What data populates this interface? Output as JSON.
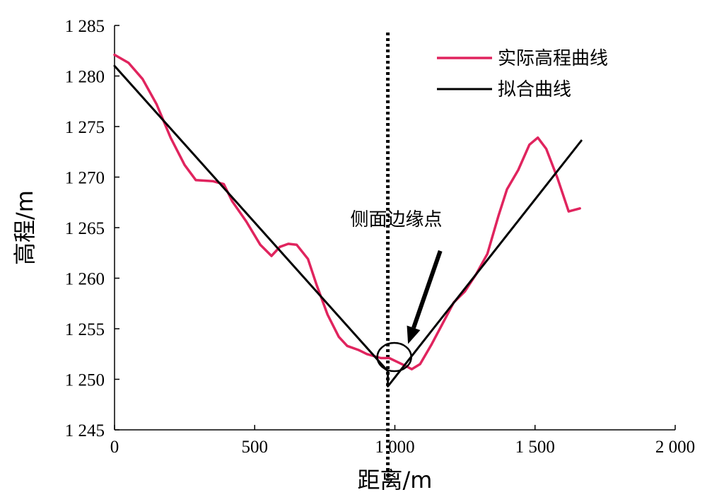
{
  "chart_data": {
    "type": "line",
    "title": "",
    "xlabel": "距离/m",
    "ylabel": "高程/m",
    "xlim": [
      0,
      2000
    ],
    "ylim": [
      1245,
      1285
    ],
    "x_ticks": [
      0,
      500,
      1000,
      1500,
      2000
    ],
    "x_tick_labels": [
      "0",
      "500",
      "1 000",
      "1 500",
      "2 000"
    ],
    "y_ticks": [
      1245,
      1250,
      1255,
      1260,
      1265,
      1270,
      1275,
      1280,
      1285
    ],
    "y_tick_labels": [
      "1 245",
      "1 250",
      "1 255",
      "1 260",
      "1 265",
      "1 270",
      "1 275",
      "1 280",
      "1 285"
    ],
    "grid": false,
    "legend_position": "top-right",
    "series": [
      {
        "name": "实际高程曲线",
        "color": "#e0245e",
        "x": [
          0,
          50,
          100,
          150,
          200,
          250,
          290,
          350,
          390,
          420,
          470,
          520,
          560,
          590,
          620,
          650,
          690,
          720,
          760,
          800,
          830,
          870,
          900,
          950,
          980,
          1010,
          1040,
          1060,
          1090,
          1130,
          1170,
          1210,
          1250,
          1290,
          1330,
          1370,
          1400,
          1440,
          1480,
          1510,
          1540,
          1580,
          1620,
          1660
        ],
        "y": [
          1282.1,
          1281.3,
          1279.7,
          1277.2,
          1273.9,
          1271.2,
          1269.7,
          1269.6,
          1269.3,
          1267.6,
          1265.6,
          1263.3,
          1262.2,
          1263.1,
          1263.4,
          1263.3,
          1261.9,
          1259.4,
          1256.4,
          1254.2,
          1253.3,
          1252.9,
          1252.5,
          1252.1,
          1252.1,
          1251.7,
          1251.3,
          1251.0,
          1251.5,
          1253.4,
          1255.5,
          1257.6,
          1258.7,
          1260.4,
          1262.4,
          1266.2,
          1268.8,
          1270.7,
          1273.2,
          1273.9,
          1272.8,
          1269.9,
          1266.6,
          1266.9
        ],
        "width": 3.5
      },
      {
        "name": "拟合曲线",
        "color": "#000000",
        "x": [
          0,
          975,
          975,
          1665
        ],
        "y": [
          1281.0,
          1250.8,
          1249.3,
          1273.6
        ],
        "width": 3
      }
    ],
    "vertical_line": {
      "x": 975,
      "style": "dotted"
    },
    "annotations": [
      {
        "text": "侧面边缘点",
        "text_x": 1005,
        "text_y": 1265.2,
        "arrow_from": [
          1162,
          1262.7
        ],
        "arrow_to": [
          1047,
          1253.5
        ]
      }
    ],
    "marker_circle": {
      "cx": 998,
      "cy": 1252.2,
      "rx": 58,
      "ry": 2.5
    }
  }
}
